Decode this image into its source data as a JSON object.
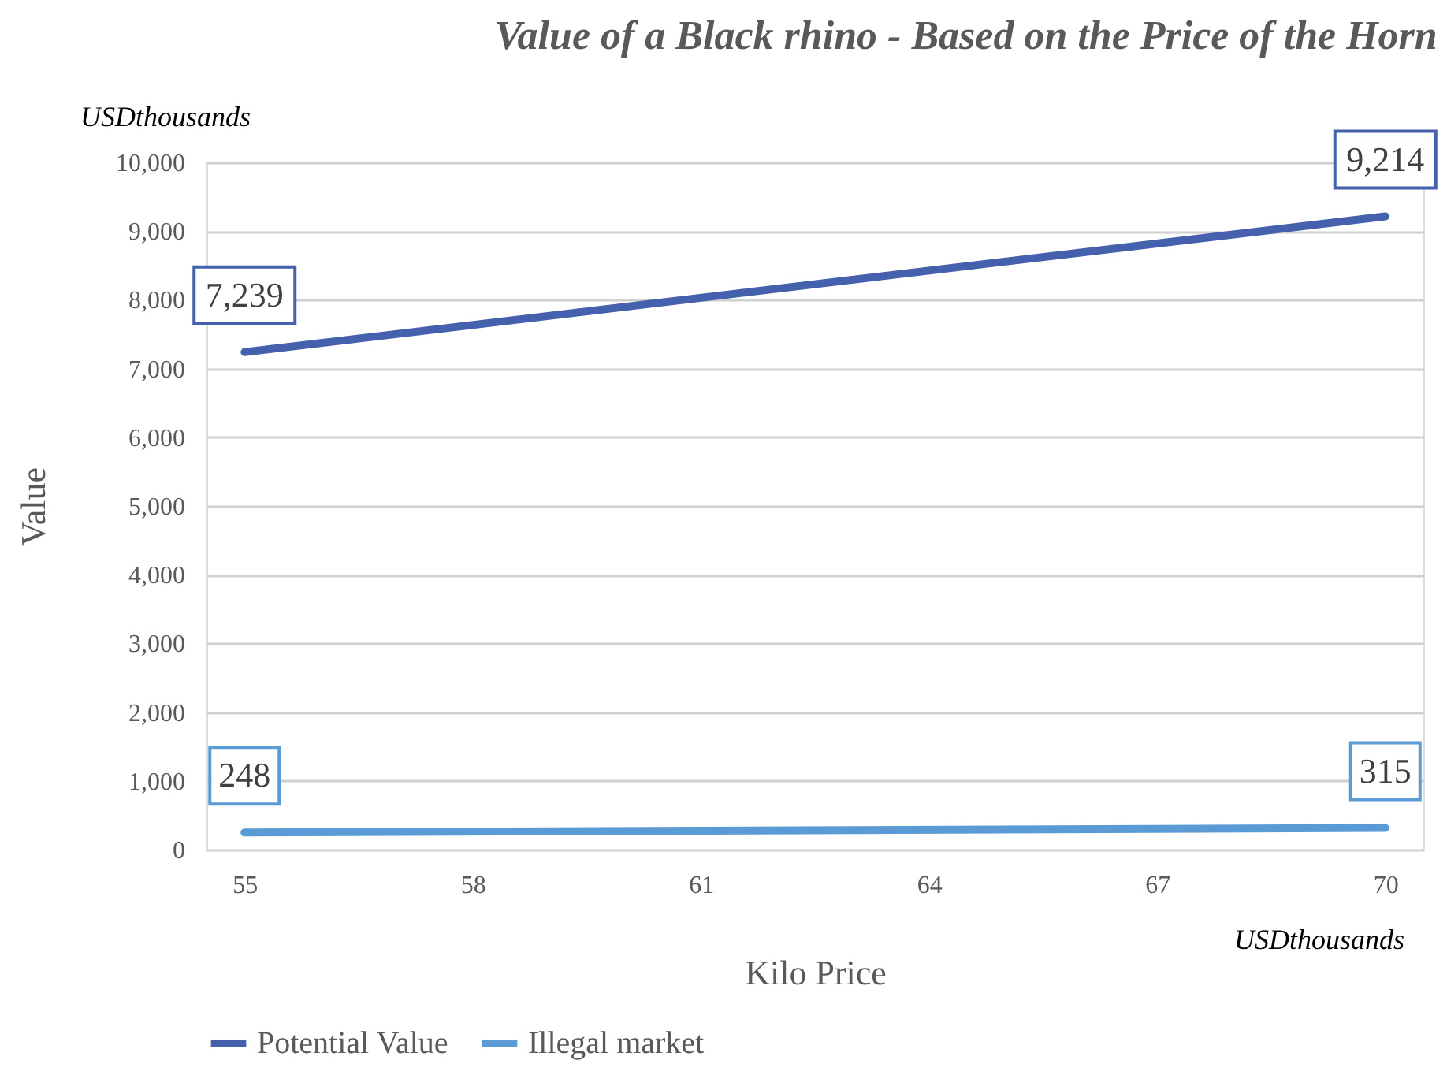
{
  "chart_data": {
    "type": "line",
    "title": "Value of a Black rhino - Based on the Price of the Horn",
    "xlabel": "Kilo Price",
    "ylabel": "Value",
    "annotations": [
      "USDthousands",
      "USDthousands"
    ],
    "x": [
      55,
      70
    ],
    "series": [
      {
        "name": "Potential Value",
        "color": "#4560ad",
        "values": [
          7239,
          9214
        ],
        "value_labels": [
          "7,239",
          "9,214"
        ]
      },
      {
        "name": "Illegal market",
        "color": "#5b9bd5",
        "values": [
          248,
          315
        ],
        "value_labels": [
          "248",
          "315"
        ]
      }
    ],
    "xlim": [
      54.5,
      70.5
    ],
    "xticks": [
      55,
      58,
      61,
      64,
      67,
      70
    ],
    "ylim": [
      0,
      10000
    ],
    "yticks": [
      {
        "value": 0,
        "label": "0"
      },
      {
        "value": 1000,
        "label": "1,000"
      },
      {
        "value": 2000,
        "label": "2,000"
      },
      {
        "value": 3000,
        "label": "3,000"
      },
      {
        "value": 4000,
        "label": "4,000"
      },
      {
        "value": 5000,
        "label": "5,000"
      },
      {
        "value": 6000,
        "label": "6,000"
      },
      {
        "value": 7000,
        "label": "7,000"
      },
      {
        "value": 8000,
        "label": "8,000"
      },
      {
        "value": 9000,
        "label": "9,000"
      },
      {
        "value": 10000,
        "label": "10,000"
      }
    ],
    "grid": "y",
    "legend": "bottom",
    "marker": "none",
    "line_style": "solid"
  }
}
